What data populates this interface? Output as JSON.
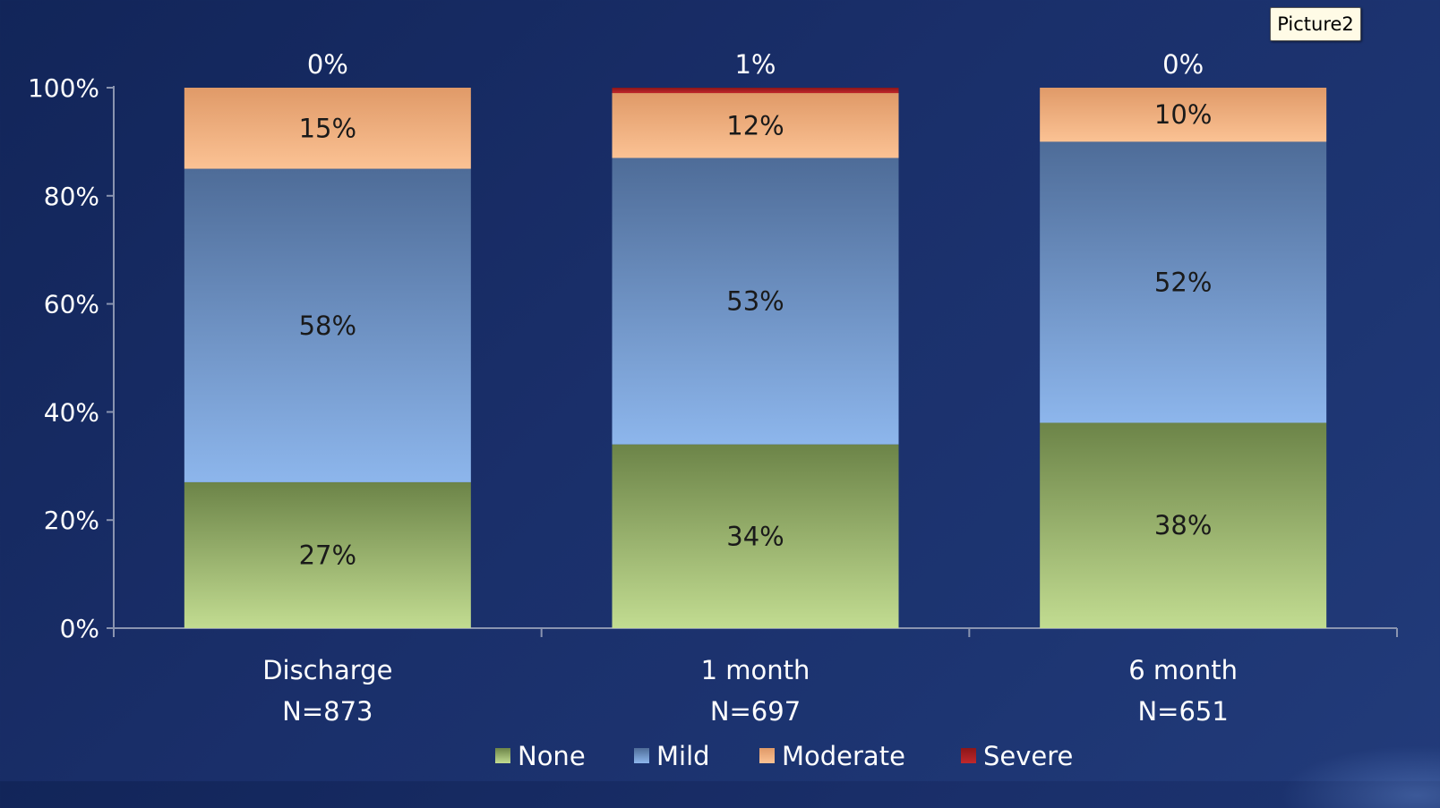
{
  "tooltip": {
    "text": "Picture2"
  },
  "colors": {
    "None": [
      "#c2dc91",
      "#6c8448"
    ],
    "Mild": [
      "#8db6ec",
      "#4e6c98"
    ],
    "Moderate": [
      "#fbc294",
      "#e09a68"
    ],
    "Severe": [
      "#c0282c",
      "#8c1618"
    ]
  },
  "chart_data": {
    "type": "bar",
    "stacked": true,
    "categories": [
      [
        "Discharge",
        "N=873"
      ],
      [
        "1 month",
        "N=697"
      ],
      [
        "6 month",
        "N=651"
      ]
    ],
    "series": [
      {
        "name": "None",
        "values": [
          27,
          34,
          38
        ],
        "labels": [
          "27%",
          "34%",
          "38%"
        ]
      },
      {
        "name": "Mild",
        "values": [
          58,
          53,
          52
        ],
        "labels": [
          "58%",
          "53%",
          "52%"
        ]
      },
      {
        "name": "Moderate",
        "values": [
          15,
          12,
          10
        ],
        "labels": [
          "15%",
          "12%",
          "10%"
        ]
      },
      {
        "name": "Severe",
        "values": [
          0,
          1,
          0
        ],
        "labels": [
          "0%",
          "1%",
          "0%"
        ]
      }
    ],
    "ylim": [
      0,
      100
    ],
    "yticks": [
      "0%",
      "20%",
      "40%",
      "60%",
      "80%",
      "100%"
    ],
    "legend": [
      "None",
      "Mild",
      "Moderate",
      "Severe"
    ],
    "legend_position": "bottom",
    "grid": false
  }
}
